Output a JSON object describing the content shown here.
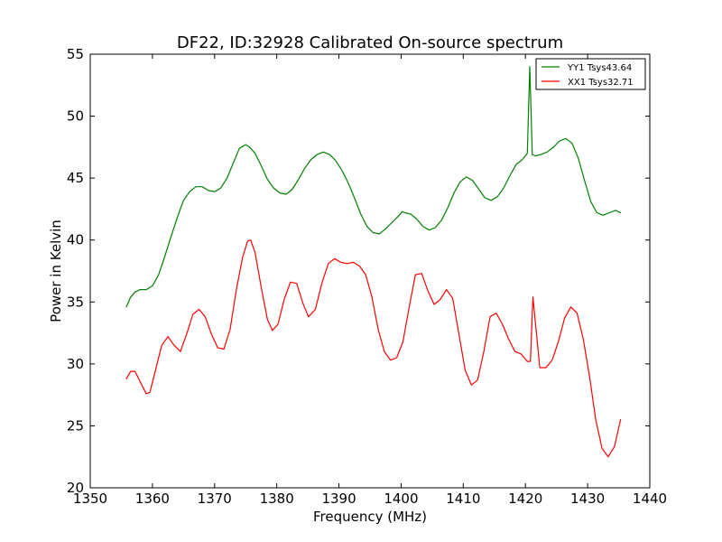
{
  "chart_data": {
    "type": "line",
    "title": "DF22, ID:32928 Calibrated On-source spectrum",
    "xlabel": "Frequency (MHz)",
    "ylabel": "Power in Kelvin",
    "xlim": [
      1350,
      1440
    ],
    "ylim": [
      20,
      55
    ],
    "xticks": [
      1350,
      1360,
      1370,
      1380,
      1390,
      1400,
      1410,
      1420,
      1430,
      1440
    ],
    "yticks": [
      20,
      25,
      30,
      35,
      40,
      45,
      50,
      55
    ],
    "grid": false,
    "legend_position": "top-right",
    "series": [
      {
        "name": "YY1 Tsys43.64",
        "color": "#008000",
        "x": [
          1355.8,
          1356.5,
          1357.2,
          1358,
          1359,
          1360,
          1361,
          1362,
          1363,
          1364,
          1365,
          1366,
          1367,
          1368,
          1369,
          1370,
          1371,
          1372,
          1373,
          1374,
          1375,
          1375.6,
          1376.5,
          1377.5,
          1378.5,
          1379.5,
          1380.5,
          1381.5,
          1382.5,
          1383.5,
          1384.5,
          1385.5,
          1386.5,
          1387.5,
          1388.5,
          1389.5,
          1390.5,
          1391.5,
          1392.5,
          1393.5,
          1394.5,
          1395.5,
          1396.5,
          1397.5,
          1398.5,
          1399.5,
          1400.2,
          1400.6,
          1401.5,
          1402.5,
          1403.5,
          1404.5,
          1405.5,
          1406.5,
          1407.5,
          1408.5,
          1409.5,
          1410.5,
          1411.5,
          1412.5,
          1413.5,
          1414.5,
          1415.5,
          1416.5,
          1417.5,
          1418.5,
          1419.5,
          1420.3,
          1420.7,
          1421.1,
          1421.6,
          1422.5,
          1423.5,
          1424.5,
          1425.5,
          1426.5,
          1427.5,
          1428.5,
          1429.5,
          1430.5,
          1431.5,
          1432.5,
          1433.5,
          1434.5,
          1435.3
        ],
        "values": [
          34.6,
          35.4,
          35.8,
          36.0,
          36.0,
          36.3,
          37.2,
          38.7,
          40.3,
          41.8,
          43.2,
          43.9,
          44.3,
          44.3,
          44.0,
          43.9,
          44.2,
          45.0,
          46.2,
          47.4,
          47.7,
          47.5,
          47.0,
          46.0,
          44.9,
          44.2,
          43.8,
          43.7,
          44.1,
          44.9,
          45.8,
          46.5,
          46.9,
          47.1,
          46.9,
          46.4,
          45.6,
          44.6,
          43.4,
          42.1,
          41.1,
          40.6,
          40.5,
          40.9,
          41.4,
          41.9,
          42.3,
          42.2,
          42.1,
          41.7,
          41.1,
          40.8,
          41.0,
          41.6,
          42.6,
          43.8,
          44.7,
          45.1,
          44.8,
          44.1,
          43.4,
          43.2,
          43.5,
          44.2,
          45.2,
          46.1,
          46.5,
          47.0,
          54.0,
          46.9,
          46.8,
          46.9,
          47.1,
          47.5,
          48.0,
          48.2,
          47.8,
          46.6,
          44.8,
          43.1,
          42.2,
          42.0,
          42.2,
          42.4,
          42.2
        ]
      },
      {
        "name": "XX1 Tsys32.71",
        "color": "#ff0000",
        "x": [
          1355.8,
          1356.5,
          1357.2,
          1358,
          1359,
          1359.6,
          1360.5,
          1361.5,
          1362.5,
          1363.5,
          1364.5,
          1365.5,
          1366.5,
          1367.5,
          1368.5,
          1369.5,
          1370.5,
          1371.5,
          1372.5,
          1373.5,
          1374.5,
          1375.3,
          1375.8,
          1376.5,
          1377.5,
          1378.5,
          1379.3,
          1380.2,
          1381.2,
          1382.2,
          1383.2,
          1384.2,
          1385.1,
          1386.2,
          1387.3,
          1388.3,
          1389.3,
          1390.3,
          1391.3,
          1392.3,
          1393.3,
          1394.3,
          1395.3,
          1396.3,
          1397.3,
          1398.3,
          1399.3,
          1400.3,
          1401.3,
          1402.3,
          1403.3,
          1404.3,
          1405.3,
          1406.3,
          1407.3,
          1408.3,
          1409.3,
          1410.3,
          1411.3,
          1412.3,
          1413.3,
          1414.3,
          1415.3,
          1416.3,
          1417.3,
          1418.3,
          1419.3,
          1420.3,
          1420.8,
          1421.2,
          1422.3,
          1423.3,
          1424.3,
          1425.3,
          1426.3,
          1427.3,
          1428.3,
          1429.3,
          1430.3,
          1431.3,
          1432.3,
          1433.3,
          1434.3,
          1435.3
        ],
        "values": [
          28.8,
          29.4,
          29.4,
          28.6,
          27.6,
          27.7,
          29.5,
          31.5,
          32.2,
          31.5,
          31.0,
          32.4,
          34.0,
          34.4,
          33.8,
          32.4,
          31.3,
          31.2,
          32.8,
          36.0,
          38.6,
          39.9,
          40.0,
          39.0,
          36.2,
          33.6,
          32.7,
          33.2,
          35.2,
          36.6,
          36.5,
          34.9,
          33.8,
          34.4,
          36.6,
          38.1,
          38.5,
          38.2,
          38.1,
          38.2,
          37.9,
          37.2,
          35.4,
          32.8,
          31.0,
          30.3,
          30.5,
          31.8,
          34.6,
          37.2,
          37.3,
          35.9,
          34.8,
          35.2,
          36.0,
          35.3,
          32.4,
          29.5,
          28.3,
          28.7,
          31.0,
          33.8,
          34.1,
          33.2,
          32.0,
          31.0,
          30.8,
          30.2,
          30.2,
          35.4,
          29.7,
          29.7,
          30.3,
          31.8,
          33.7,
          34.6,
          34.1,
          32.0,
          29.0,
          25.5,
          23.2,
          22.5,
          23.3,
          25.5
        ]
      }
    ]
  }
}
